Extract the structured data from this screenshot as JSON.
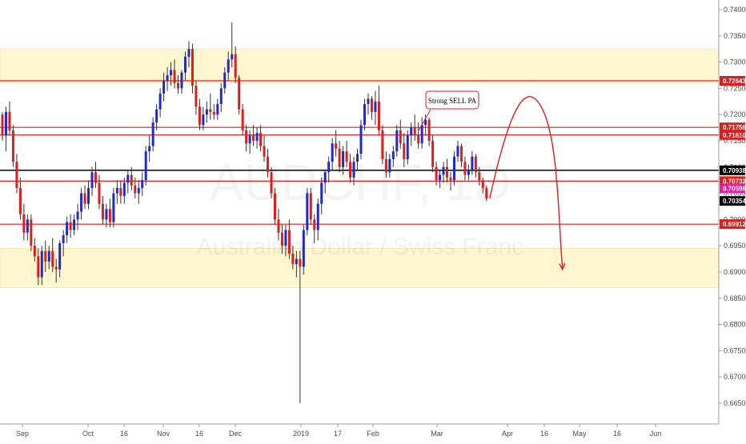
{
  "chart_data": {
    "type": "candlestick",
    "symbol": "AUDCHF, 1D",
    "description": "Australian Dollar / Swiss Franc",
    "ylim": [
      0.66,
      0.742
    ],
    "y_ticks": [
      "0.74000",
      "0.73500",
      "0.73000",
      "0.72500",
      "0.72000",
      "0.71500",
      "0.71000",
      "0.70500",
      "0.70000",
      "0.69500",
      "0.69000",
      "0.68500",
      "0.68000",
      "0.67500",
      "0.67000",
      "0.66500"
    ],
    "x_tick_labels": [
      "Sep",
      "Oct",
      "16",
      "Nov",
      "16",
      "Dec",
      "2019",
      "17",
      "Feb",
      "Mar",
      "Apr",
      "16",
      "May",
      "16",
      "Jun"
    ],
    "zones": [
      {
        "from": 0.726,
        "to": 0.7325,
        "color": "#fff7cf"
      },
      {
        "from": 0.687,
        "to": 0.6945,
        "color": "#fff7cf"
      }
    ],
    "levels": [
      {
        "price": 0.72643,
        "label": "0.72643",
        "color": "#e41b1b"
      },
      {
        "price": 0.71756,
        "label": "0.71756",
        "color": "#e41b1b"
      },
      {
        "price": 0.7161,
        "label": "0.71610",
        "color": "#e41b1b"
      },
      {
        "price": 0.70938,
        "label": "0.70938",
        "color": "#000000"
      },
      {
        "price": 0.70732,
        "label": "0.70732",
        "color": "#e41b1b"
      },
      {
        "price": 0.69912,
        "label": "0.69912",
        "color": "#e41b1b"
      }
    ],
    "price_badges": [
      {
        "price": 0.70596,
        "label": "0.70596",
        "color": "#e91e9e"
      },
      {
        "price": 0.70354,
        "label": "0.70354",
        "color": "#000000"
      }
    ],
    "annotation": {
      "text": "Strong SELL PA"
    },
    "colors": {
      "up": "#1f2bc8",
      "down": "#e41b1b",
      "wick": "#333333",
      "projection": "#e41b1b"
    },
    "candles": [
      [
        0.72,
        0.7205,
        0.715,
        0.716
      ],
      [
        0.716,
        0.7215,
        0.713,
        0.7205
      ],
      [
        0.7205,
        0.7225,
        0.716,
        0.717
      ],
      [
        0.717,
        0.718,
        0.71,
        0.711
      ],
      [
        0.711,
        0.7125,
        0.705,
        0.706
      ],
      [
        0.706,
        0.708,
        0.7,
        0.701
      ],
      [
        0.701,
        0.703,
        0.696,
        0.6975
      ],
      [
        0.6975,
        0.701,
        0.696,
        0.7
      ],
      [
        0.7,
        0.701,
        0.694,
        0.695
      ],
      [
        0.695,
        0.6965,
        0.692,
        0.693
      ],
      [
        0.693,
        0.6945,
        0.6875,
        0.689
      ],
      [
        0.689,
        0.695,
        0.6875,
        0.694
      ],
      [
        0.694,
        0.696,
        0.69,
        0.692
      ],
      [
        0.692,
        0.695,
        0.6905,
        0.694
      ],
      [
        0.694,
        0.6965,
        0.69,
        0.691
      ],
      [
        0.691,
        0.6925,
        0.688,
        0.6905
      ],
      [
        0.6905,
        0.696,
        0.689,
        0.6955
      ],
      [
        0.6955,
        0.698,
        0.693,
        0.697
      ],
      [
        0.697,
        0.7005,
        0.6955,
        0.6995
      ],
      [
        0.6995,
        0.701,
        0.6965,
        0.698
      ],
      [
        0.698,
        0.701,
        0.697,
        0.7
      ],
      [
        0.7,
        0.703,
        0.698,
        0.7015
      ],
      [
        0.7015,
        0.706,
        0.7,
        0.705
      ],
      [
        0.705,
        0.7065,
        0.702,
        0.703
      ],
      [
        0.703,
        0.7075,
        0.702,
        0.706
      ],
      [
        0.706,
        0.71,
        0.7045,
        0.709
      ],
      [
        0.709,
        0.711,
        0.706,
        0.707
      ],
      [
        0.707,
        0.7085,
        0.702,
        0.703
      ],
      [
        0.703,
        0.7045,
        0.699,
        0.7
      ],
      [
        0.7,
        0.703,
        0.6985,
        0.702
      ],
      [
        0.702,
        0.704,
        0.6985,
        0.6995
      ],
      [
        0.6995,
        0.706,
        0.6985,
        0.705
      ],
      [
        0.705,
        0.7075,
        0.703,
        0.706
      ],
      [
        0.706,
        0.7075,
        0.703,
        0.7045
      ],
      [
        0.7045,
        0.708,
        0.703,
        0.707
      ],
      [
        0.707,
        0.7095,
        0.705,
        0.7085
      ],
      [
        0.7085,
        0.71,
        0.7055,
        0.7065
      ],
      [
        0.7065,
        0.708,
        0.704,
        0.705
      ],
      [
        0.705,
        0.7075,
        0.703,
        0.706
      ],
      [
        0.706,
        0.709,
        0.7045,
        0.7075
      ],
      [
        0.7075,
        0.714,
        0.7065,
        0.713
      ],
      [
        0.713,
        0.716,
        0.711,
        0.714
      ],
      [
        0.714,
        0.7195,
        0.713,
        0.7185
      ],
      [
        0.7185,
        0.722,
        0.717,
        0.721
      ],
      [
        0.721,
        0.725,
        0.7195,
        0.724
      ],
      [
        0.724,
        0.728,
        0.7225,
        0.7265
      ],
      [
        0.7265,
        0.729,
        0.7245,
        0.7275
      ],
      [
        0.7275,
        0.73,
        0.7255,
        0.7285
      ],
      [
        0.7285,
        0.7305,
        0.725,
        0.726
      ],
      [
        0.726,
        0.7275,
        0.724,
        0.725
      ],
      [
        0.725,
        0.7285,
        0.724,
        0.728
      ],
      [
        0.728,
        0.732,
        0.7265,
        0.731
      ],
      [
        0.731,
        0.734,
        0.729,
        0.7325
      ],
      [
        0.7325,
        0.7335,
        0.724,
        0.7255
      ],
      [
        0.7255,
        0.7265,
        0.72,
        0.7215
      ],
      [
        0.7215,
        0.723,
        0.717,
        0.718
      ],
      [
        0.718,
        0.7215,
        0.717,
        0.72
      ],
      [
        0.72,
        0.7225,
        0.7185,
        0.721
      ],
      [
        0.721,
        0.724,
        0.719,
        0.7205
      ],
      [
        0.7205,
        0.722,
        0.719,
        0.72
      ],
      [
        0.72,
        0.723,
        0.719,
        0.722
      ],
      [
        0.722,
        0.726,
        0.7205,
        0.725
      ],
      [
        0.725,
        0.729,
        0.724,
        0.728
      ],
      [
        0.728,
        0.732,
        0.7265,
        0.7305
      ],
      [
        0.7305,
        0.7375,
        0.729,
        0.7315
      ],
      [
        0.7315,
        0.733,
        0.726,
        0.727
      ],
      [
        0.727,
        0.7275,
        0.72,
        0.721
      ],
      [
        0.721,
        0.722,
        0.716,
        0.717
      ],
      [
        0.717,
        0.718,
        0.713,
        0.7145
      ],
      [
        0.7145,
        0.717,
        0.7125,
        0.716
      ],
      [
        0.716,
        0.718,
        0.714,
        0.715
      ],
      [
        0.715,
        0.7175,
        0.7135,
        0.7165
      ],
      [
        0.7165,
        0.718,
        0.713,
        0.714
      ],
      [
        0.714,
        0.716,
        0.711,
        0.712
      ],
      [
        0.712,
        0.7135,
        0.708,
        0.709
      ],
      [
        0.709,
        0.71,
        0.704,
        0.705
      ],
      [
        0.705,
        0.706,
        0.699,
        0.7
      ],
      [
        0.7,
        0.702,
        0.696,
        0.6975
      ],
      [
        0.6975,
        0.699,
        0.6935,
        0.695
      ],
      [
        0.695,
        0.699,
        0.693,
        0.698
      ],
      [
        0.698,
        0.7,
        0.6925,
        0.6935
      ],
      [
        0.6935,
        0.695,
        0.6905,
        0.6915
      ],
      [
        0.6915,
        0.694,
        0.689,
        0.6925
      ],
      [
        0.6925,
        0.694,
        0.665,
        0.691
      ],
      [
        0.691,
        0.699,
        0.6895,
        0.698
      ],
      [
        0.698,
        0.706,
        0.697,
        0.705
      ],
      [
        0.705,
        0.706,
        0.699,
        0.7
      ],
      [
        0.7,
        0.701,
        0.6955,
        0.698
      ],
      [
        0.698,
        0.704,
        0.696,
        0.703
      ],
      [
        0.703,
        0.708,
        0.701,
        0.707
      ],
      [
        0.707,
        0.7095,
        0.705,
        0.709
      ],
      [
        0.709,
        0.712,
        0.707,
        0.711
      ],
      [
        0.711,
        0.7155,
        0.7095,
        0.7145
      ],
      [
        0.7145,
        0.717,
        0.712,
        0.7135
      ],
      [
        0.7135,
        0.715,
        0.709,
        0.71
      ],
      [
        0.71,
        0.714,
        0.7085,
        0.713
      ],
      [
        0.713,
        0.715,
        0.71,
        0.711
      ],
      [
        0.711,
        0.7125,
        0.707,
        0.708
      ],
      [
        0.708,
        0.712,
        0.7065,
        0.711
      ],
      [
        0.711,
        0.7135,
        0.7095,
        0.7125
      ],
      [
        0.7125,
        0.719,
        0.7115,
        0.718
      ],
      [
        0.718,
        0.723,
        0.717,
        0.722
      ],
      [
        0.722,
        0.724,
        0.72,
        0.723
      ],
      [
        0.723,
        0.7235,
        0.719,
        0.7205
      ],
      [
        0.7205,
        0.7245,
        0.718,
        0.7225
      ],
      [
        0.7225,
        0.7255,
        0.716,
        0.717
      ],
      [
        0.717,
        0.718,
        0.7105,
        0.7115
      ],
      [
        0.7115,
        0.713,
        0.708,
        0.709
      ],
      [
        0.709,
        0.7125,
        0.708,
        0.7115
      ],
      [
        0.7115,
        0.714,
        0.71,
        0.713
      ],
      [
        0.713,
        0.718,
        0.712,
        0.717
      ],
      [
        0.717,
        0.719,
        0.7135,
        0.7145
      ],
      [
        0.7145,
        0.7165,
        0.71,
        0.7115
      ],
      [
        0.7115,
        0.717,
        0.7105,
        0.716
      ],
      [
        0.716,
        0.7185,
        0.714,
        0.7175
      ],
      [
        0.7175,
        0.72,
        0.715,
        0.716
      ],
      [
        0.716,
        0.7185,
        0.7135,
        0.7145
      ],
      [
        0.7145,
        0.7195,
        0.7135,
        0.718
      ],
      [
        0.718,
        0.72,
        0.716,
        0.719
      ],
      [
        0.719,
        0.7195,
        0.714,
        0.715
      ],
      [
        0.715,
        0.716,
        0.709,
        0.71
      ],
      [
        0.71,
        0.711,
        0.7065,
        0.7075
      ],
      [
        0.7075,
        0.7095,
        0.706,
        0.7085
      ],
      [
        0.7085,
        0.711,
        0.707,
        0.71
      ],
      [
        0.71,
        0.7115,
        0.707,
        0.708
      ],
      [
        0.708,
        0.709,
        0.7055,
        0.7075
      ],
      [
        0.7075,
        0.713,
        0.7065,
        0.712
      ],
      [
        0.712,
        0.715,
        0.711,
        0.714
      ],
      [
        0.714,
        0.7145,
        0.71,
        0.711
      ],
      [
        0.711,
        0.712,
        0.7075,
        0.7085
      ],
      [
        0.7085,
        0.7105,
        0.7075,
        0.7095
      ],
      [
        0.7095,
        0.713,
        0.7085,
        0.712
      ],
      [
        0.712,
        0.7125,
        0.708,
        0.709
      ],
      [
        0.709,
        0.71,
        0.7065,
        0.7075
      ],
      [
        0.7075,
        0.708,
        0.705,
        0.706
      ],
      [
        0.706,
        0.7065,
        0.7035,
        0.704
      ]
    ]
  }
}
